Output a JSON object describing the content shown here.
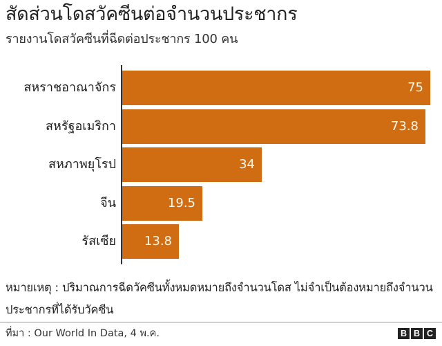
{
  "header": {
    "title": "สัดส่วนโดสวัคซีนต่อจำนวนประชากร",
    "subtitle": "รายงานโดสวัคซีนที่ฉีดต่อประชากร 100 คน"
  },
  "chart_data": {
    "type": "bar",
    "orientation": "horizontal",
    "title": "สัดส่วนโดสวัคซีนต่อจำนวนประชากร",
    "subtitle": "รายงานโดสวัคซีนที่ฉีดต่อประชากร 100 คน",
    "categories": [
      "สหราชอาณาจักร",
      "สหรัฐอเมริกา",
      "สหภาพยุโรป",
      "จีน",
      "รัสเซีย"
    ],
    "values": [
      75,
      73.8,
      34,
      19.5,
      13.8
    ],
    "value_labels": [
      "75",
      "73.8",
      "34",
      "19.5",
      "13.8"
    ],
    "xlabel": "",
    "ylabel": "",
    "xlim": [
      0,
      75
    ],
    "grid": false,
    "legend": null,
    "bar_color": "#D06C12",
    "label_color": "#FFF8EE"
  },
  "footer": {
    "note": "หมายเหตุ : ปริมาณการฉีดวัคซีนทั้งหมดหมายถึงจำนวนโดส ไม่จำเป็นต้องหมายถึงจำนวนประชากรที่ได้รับวัคซีน",
    "source": "ที่มา : Our World In Data, 4 พ.ค.",
    "logo": [
      "B",
      "B",
      "C"
    ]
  }
}
